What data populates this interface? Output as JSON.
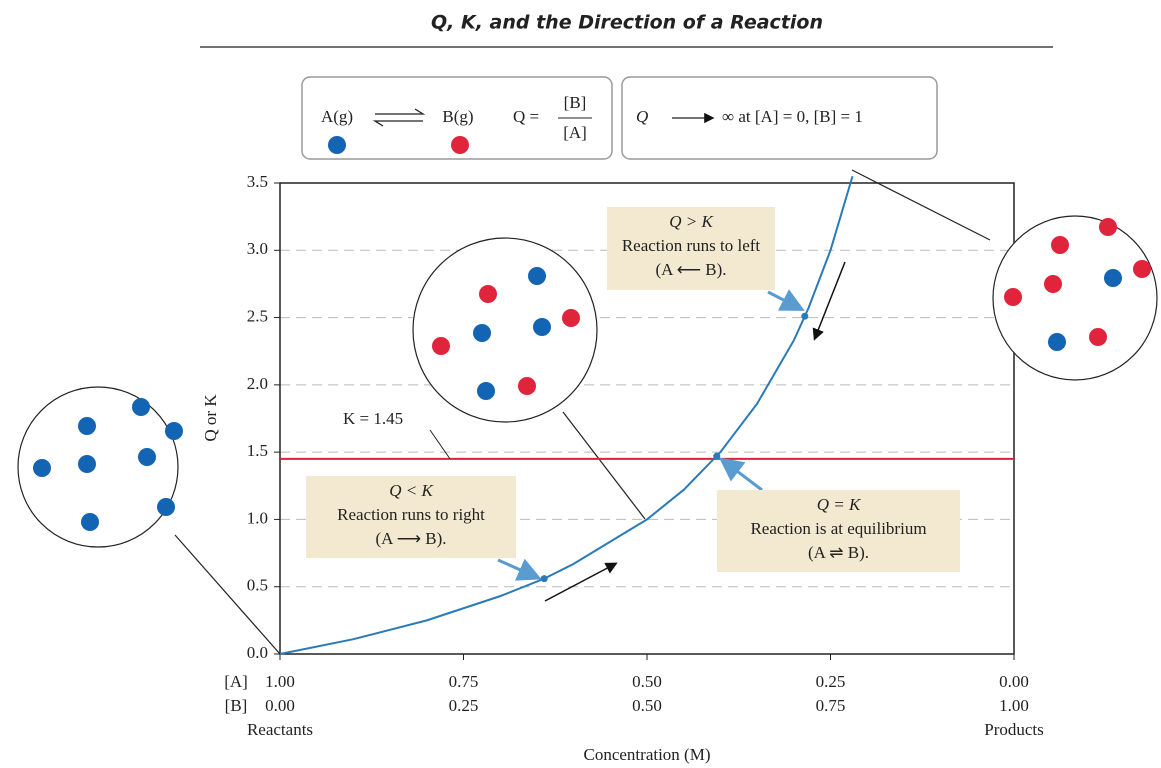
{
  "chart_data": {
    "type": "line",
    "title": "Q, K, and the Direction of a Reaction",
    "reaction": {
      "a": "A(g)",
      "b": "B(g)",
      "q": "Q =",
      "num": "[B]",
      "den": "[A]"
    },
    "limit": {
      "q": "Q",
      "text": "∞ at [A] = 0, [B] = 1"
    },
    "y_label": "Q or K",
    "x_label": "Concentration (M)",
    "x_row_labels": [
      "[A]",
      "[B]"
    ],
    "x_end_labels": [
      "Reactants",
      "Products"
    ],
    "xlim": [
      0,
      1
    ],
    "xticks": [
      {
        "value": 0,
        "label": "0.00"
      },
      {
        "value": 0.25,
        "label": "0.25"
      },
      {
        "value": 0.5,
        "label": "0.50"
      },
      {
        "value": 0.75,
        "label": "0.75"
      },
      {
        "value": 1,
        "label": "1.00"
      }
    ],
    "a_tick_labels": [
      "1.00",
      "0.75",
      "0.50",
      "0.25",
      "0.00"
    ],
    "ylim": [
      0,
      3.5
    ],
    "yticks": [
      {
        "value": 0,
        "label": "0.0"
      },
      {
        "value": 0.5,
        "label": "0.5"
      },
      {
        "value": 1,
        "label": "1.0"
      },
      {
        "value": 1.5,
        "label": "1.5"
      },
      {
        "value": 2,
        "label": "2.0"
      },
      {
        "value": 2.5,
        "label": "2.5"
      },
      {
        "value": 3,
        "label": "3.0"
      },
      {
        "value": 3.5,
        "label": "3.5"
      }
    ],
    "grid": true,
    "series": [
      {
        "color": "#2a7ab8",
        "x": [
          0,
          0.1,
          0.2,
          0.3,
          0.36,
          0.4,
          0.5,
          0.55,
          0.6,
          0.65,
          0.7,
          0.72,
          0.75,
          0.78
        ],
        "values": [
          0,
          0.11,
          0.25,
          0.43,
          0.56,
          0.67,
          1,
          1.22,
          1.5,
          1.86,
          2.33,
          2.57,
          3,
          3.55
        ]
      }
    ],
    "points": {
      "color": "#2a7ab8",
      "x": [
        0.36,
        0.595,
        0.715
      ],
      "values": [
        0.56,
        1.47,
        2.51
      ]
    },
    "k_line": {
      "value": 1.45,
      "label": "K = 1.45",
      "color": "#d6243c"
    },
    "annotations": [
      {
        "lines": [
          "Q < K",
          "Reaction runs to right",
          "(A ⟶ B)."
        ]
      },
      {
        "lines": [
          "Q = K",
          "Reaction is at equilibrium",
          "(A ⇌ B)."
        ]
      },
      {
        "lines": [
          "Q > K",
          "Reaction runs to left",
          "(A ⟵ B)."
        ]
      }
    ]
  }
}
